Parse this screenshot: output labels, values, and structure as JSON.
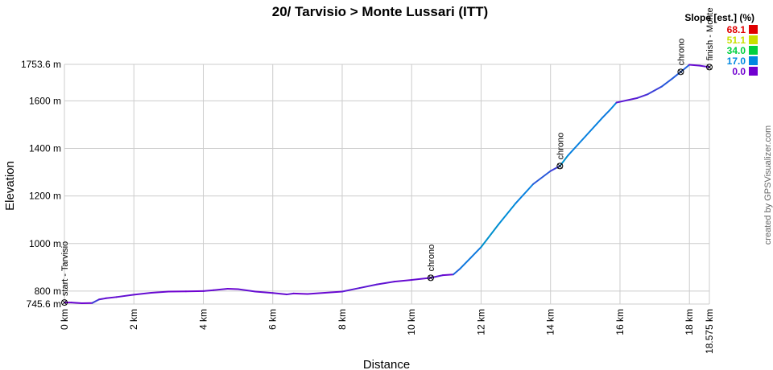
{
  "chart_data": {
    "type": "line",
    "title": "20/ Tarvisio > Monte Lussari (ITT)",
    "xlabel": "Distance",
    "ylabel": "Elevation",
    "x_unit": "km",
    "y_unit": "m",
    "xlim": [
      0,
      18.575
    ],
    "ylim": [
      745.6,
      1753.6
    ],
    "x_ticks": [
      0,
      2,
      4,
      6,
      8,
      10,
      12,
      14,
      16,
      18,
      18.575
    ],
    "x_tick_labels": [
      "0 km",
      "2 km",
      "4 km",
      "6 km",
      "8 km",
      "10 km",
      "12 km",
      "14 km",
      "16 km",
      "18 km",
      "18.575 km"
    ],
    "y_ticks": [
      745.6,
      800,
      1000,
      1200,
      1400,
      1600,
      1753.6
    ],
    "y_tick_labels": [
      "745.6 m",
      "800 m",
      "1000 m",
      "1200 m",
      "1400 m",
      "1600 m",
      "1753.6 m"
    ],
    "grid": true,
    "series": [
      {
        "x": [
          0,
          0.2,
          0.5,
          0.8,
          1.0,
          1.2,
          1.5,
          2.0,
          2.5,
          3.0,
          3.5,
          4.0,
          4.3,
          4.7,
          5.0,
          5.5,
          6.0,
          6.4,
          6.6,
          7.0,
          7.5,
          8.0,
          8.5,
          9.0,
          9.5,
          10.0,
          10.55,
          10.9,
          11.2,
          11.4,
          11.7,
          12.0,
          12.5,
          13.0,
          13.5,
          14.0,
          14.27,
          14.5,
          15.0,
          15.5,
          15.7,
          15.9,
          16.5,
          16.8,
          17.2,
          17.5,
          17.75,
          18.0,
          18.3,
          18.575
        ],
        "y": [
          752,
          752,
          749,
          750,
          765,
          770,
          775,
          785,
          793,
          798,
          799,
          800,
          804,
          810,
          808,
          798,
          792,
          786,
          790,
          788,
          793,
          798,
          813,
          828,
          840,
          847,
          856,
          867,
          870,
          895,
          940,
          985,
          1080,
          1170,
          1250,
          1305,
          1326,
          1370,
          1450,
          1530,
          1560,
          1593,
          1612,
          1628,
          1660,
          1693,
          1722,
          1752,
          1748,
          1742
        ]
      }
    ],
    "waypoints": [
      {
        "x": 0,
        "y": 752,
        "label": "start - Tarvisio"
      },
      {
        "x": 10.55,
        "y": 856,
        "label": "chrono"
      },
      {
        "x": 14.27,
        "y": 1326,
        "label": "chrono"
      },
      {
        "x": 17.75,
        "y": 1722,
        "label": "chrono"
      },
      {
        "x": 18.575,
        "y": 1742,
        "label": "finish - Monte"
      }
    ],
    "legend": {
      "title": "Slope [est.] (%)",
      "placement": "top-right",
      "entries": [
        {
          "label": "68.1",
          "color": "#e00000"
        },
        {
          "label": "51.1",
          "color": "#c8e000"
        },
        {
          "label": "34.0",
          "color": "#00d040"
        },
        {
          "label": "17.0",
          "color": "#0088e0"
        },
        {
          "label": "0.0",
          "color": "#7000d0"
        }
      ]
    }
  },
  "credit": "created by GPSVisualizer.com"
}
